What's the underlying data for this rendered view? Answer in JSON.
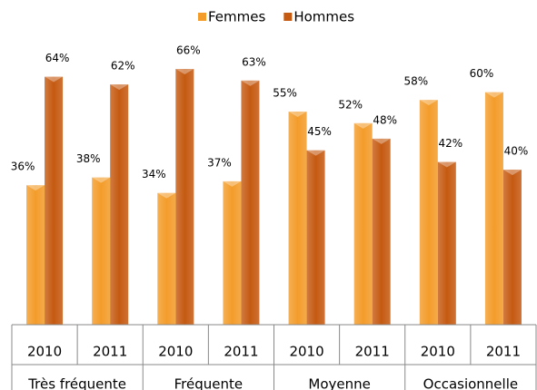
{
  "chart_data": {
    "type": "bar",
    "categories": [
      "2010",
      "2011",
      "2010",
      "2011",
      "2010",
      "2011",
      "2010",
      "2011"
    ],
    "groups": [
      "Très fréquente",
      "Fréquente",
      "Moyenne",
      "Occasionnelle"
    ],
    "series": [
      {
        "name": "Femmes",
        "color": "#f39c2a",
        "values": [
          36,
          38,
          34,
          37,
          55,
          52,
          58,
          60
        ],
        "value_labels": [
          "36%",
          "38%",
          "34%",
          "37%",
          "55%",
          "52%",
          "58%",
          "60%"
        ]
      },
      {
        "name": "Hommes",
        "color": "#c55a11",
        "values": [
          64,
          62,
          66,
          63,
          45,
          48,
          42,
          40
        ],
        "value_labels": [
          "64%",
          "62%",
          "66%",
          "63%",
          "45%",
          "48%",
          "42%",
          "40%"
        ]
      }
    ],
    "legend": "top"
  }
}
